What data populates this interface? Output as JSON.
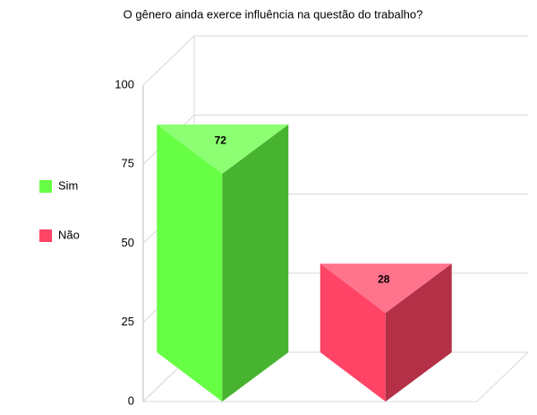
{
  "chart_data": {
    "type": "bar3d",
    "title": "O gênero ainda exerce influência na questão do trabalho?",
    "categories": [
      "Sim",
      "Não"
    ],
    "values": [
      72,
      28
    ],
    "colors": [
      "#66ff44",
      "#ff4466"
    ],
    "ylim": [
      0,
      100
    ],
    "yticks": [
      0,
      25,
      50,
      75,
      100
    ],
    "grid": true
  }
}
